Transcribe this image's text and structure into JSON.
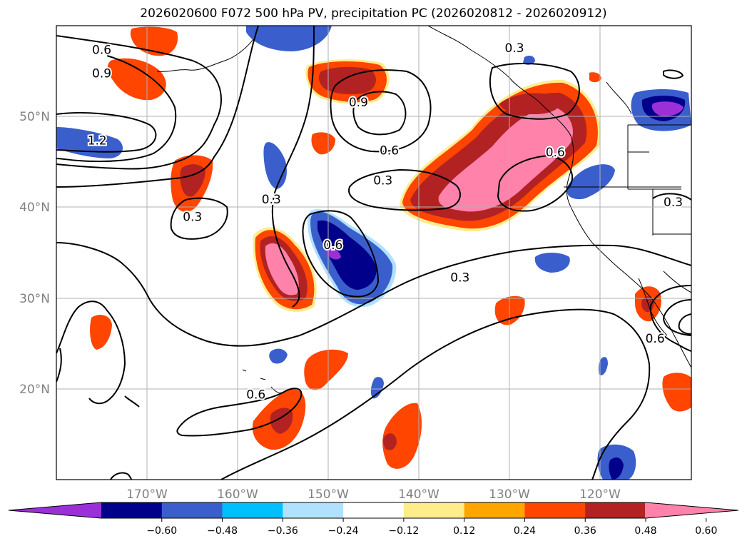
{
  "title": "2026020600 F072 500 hPa PV, precipitation PC (2026020812 - 2026020912)",
  "map": {
    "lon_ticks": [
      "170°W",
      "160°W",
      "150°W",
      "140°W",
      "130°W",
      "120°W"
    ],
    "lat_ticks": [
      "50°N",
      "40°N",
      "30°N",
      "20°N"
    ],
    "gridlines": true,
    "lon_range": [
      -180,
      -110
    ],
    "lat_range": [
      10,
      60
    ]
  },
  "contours": {
    "color": "#000000",
    "labels": [
      {
        "text": "0.6",
        "lon": -175,
        "lat": 57.3
      },
      {
        "text": "0.9",
        "lon": -175,
        "lat": 54.7
      },
      {
        "text": "1.2",
        "lon": -175.5,
        "lat": 47.3
      },
      {
        "text": "0.3",
        "lon": -165,
        "lat": 38.9
      },
      {
        "text": "0.3",
        "lon": -156.3,
        "lat": 40.8
      },
      {
        "text": "0.9",
        "lon": -146.7,
        "lat": 51.5
      },
      {
        "text": "0.6",
        "lon": -143.3,
        "lat": 46.2
      },
      {
        "text": "0.3",
        "lon": -144,
        "lat": 42.9
      },
      {
        "text": "0.6",
        "lon": -149.5,
        "lat": 35.8
      },
      {
        "text": "0.3",
        "lon": -135.5,
        "lat": 32.2
      },
      {
        "text": "0.6",
        "lon": -125,
        "lat": 46
      },
      {
        "text": "0.3",
        "lon": -129.5,
        "lat": 57.5
      },
      {
        "text": "0.6",
        "lon": -158,
        "lat": 19.3
      },
      {
        "text": "0.3",
        "lon": -112,
        "lat": 40.5
      },
      {
        "text": "0.6",
        "lon": -114,
        "lat": 25.5
      }
    ]
  },
  "colorbar": {
    "colors": [
      "#9b30d8",
      "#00008b",
      "#3a5fcd",
      "#00bfff",
      "#b0e2ff",
      "#ffffff",
      "#ffec8b",
      "#ffa500",
      "#ff4500",
      "#b22222",
      "#ff82ab"
    ],
    "ticks": [
      "−0.60",
      "−0.48",
      "−0.36",
      "−0.24",
      "−0.12",
      "0.12",
      "0.24",
      "0.36",
      "0.48",
      "0.60"
    ]
  }
}
